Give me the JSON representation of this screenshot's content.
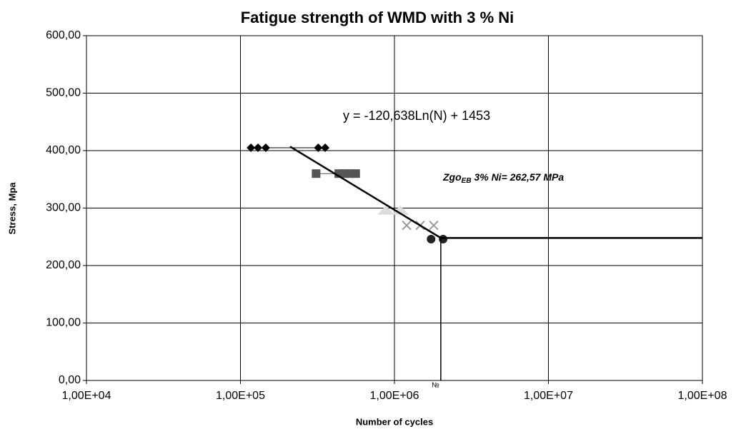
{
  "chart_data": {
    "type": "scatter",
    "title": "Fatigue strength of WMD with 3 % Ni",
    "x_label": "Number of cycles",
    "y_label": "Stress, Mpa",
    "x_log": true,
    "grid": true,
    "xlim": [
      10000,
      100000000
    ],
    "ylim": [
      0,
      600
    ],
    "xticks": [
      {
        "value": 10000,
        "label": "1,00E+04"
      },
      {
        "value": 100000,
        "label": "1,00E+05"
      },
      {
        "value": 1000000,
        "label": "1,00E+06"
      },
      {
        "value": 10000000,
        "label": "1,00E+07"
      },
      {
        "value": 100000000,
        "label": "1,00E+08"
      }
    ],
    "yticks": [
      {
        "value": 0,
        "label": "0,00"
      },
      {
        "value": 100,
        "label": "100,00"
      },
      {
        "value": 200,
        "label": "200,00"
      },
      {
        "value": 300,
        "label": "300,00"
      },
      {
        "value": 400,
        "label": "400,00"
      },
      {
        "value": 500,
        "label": "500,00"
      },
      {
        "value": 600,
        "label": "600,00"
      }
    ],
    "annotations": [
      {
        "text": "y = -120,638Ln(N)  + 1453"
      },
      {
        "text": "Zgo",
        "sub": "EB",
        "rest": " 3% Ni= 262,57 MPa"
      },
      {
        "text": "№"
      }
    ],
    "series": [
      {
        "marker": "diamond",
        "color": "#000000",
        "line": true,
        "x": [
          117000,
          130000,
          146000,
          320000,
          355000
        ],
        "values": [
          405,
          405,
          405,
          405,
          405
        ]
      },
      {
        "marker": "square",
        "color": "#555555",
        "line": true,
        "x": [
          310000,
          435000,
          473000,
          515000,
          560000
        ],
        "values": [
          360,
          360,
          360,
          360,
          360
        ]
      },
      {
        "marker": "triangle",
        "color": "#dddddd",
        "line": false,
        "x": [
          880000,
          1090000
        ],
        "values": [
          296,
          296
        ]
      },
      {
        "marker": "x",
        "color": "#999999",
        "line": false,
        "x": [
          1200000,
          1470000,
          1800000
        ],
        "values": [
          270,
          270,
          270
        ]
      },
      {
        "marker": "circle",
        "color": "#222222",
        "line": false,
        "x": [
          1730000,
          2070000
        ],
        "values": [
          246,
          246
        ]
      },
      {
        "marker": "none",
        "color": "#000000",
        "line": true,
        "width": 2.5,
        "x": [
          210000,
          2000000,
          100000000
        ],
        "values": [
          407,
          248,
          248
        ]
      },
      {
        "marker": "none",
        "color": "#000000",
        "line": true,
        "width": 1.5,
        "x": [
          2000000,
          2000000
        ],
        "values": [
          248,
          0
        ]
      }
    ]
  }
}
